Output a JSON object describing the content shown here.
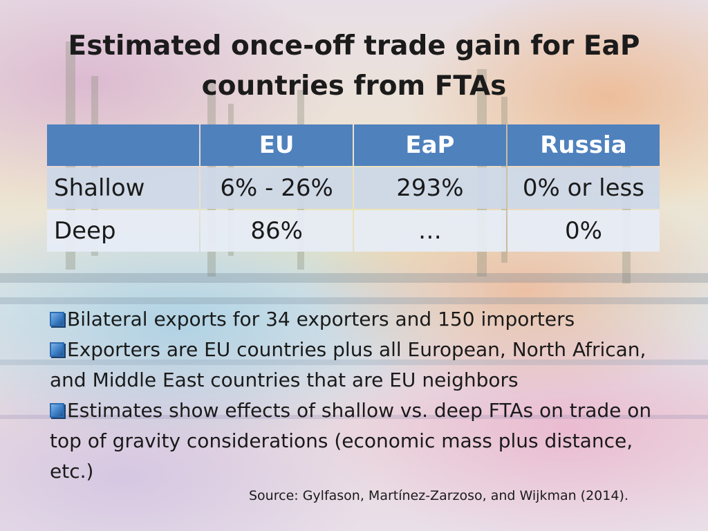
{
  "slide": {
    "title": "Estimated once-off trade gain for EaP countries from FTAs"
  },
  "table": {
    "headers": [
      "",
      "EU",
      "EaP",
      "Russia"
    ],
    "rows": [
      {
        "label": "Shallow",
        "cells": [
          "6% - 26%",
          "293%",
          "0% or less"
        ]
      },
      {
        "label": "Deep",
        "cells": [
          "86%",
          "…",
          "0%"
        ]
      }
    ]
  },
  "bullets": [
    "Bilateral exports for 34 exporters and 150 importers",
    "Exporters are EU countries plus all European, North African, and Middle East countries that are EU neighbors",
    "Estimates show effects of shallow vs. deep FTAs on trade on top of gravity considerations (economic mass plus distance, etc.)"
  ],
  "source": "Source: Gylfason, Martínez-Zarzoso, and Wijkman (2014).",
  "colors": {
    "header_fill": "#4f81bd",
    "row_shallow_fill": "#ced8e8",
    "row_deep_fill": "#e7ecf5",
    "bullet_icon": "#3d7fc7"
  },
  "icons": {
    "bullet": "checkbox-icon"
  }
}
